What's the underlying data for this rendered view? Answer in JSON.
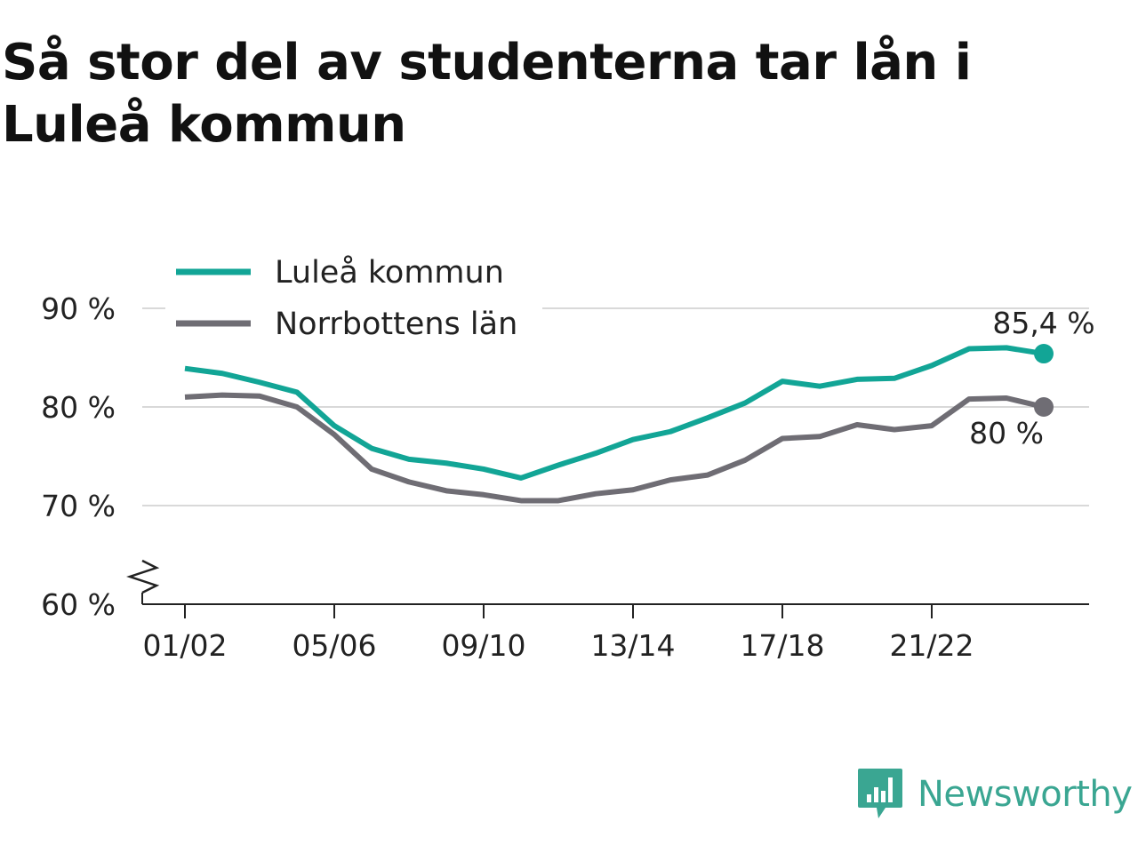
{
  "title": "Så stor del av studenterna tar lån i Luleå kommun",
  "colors": {
    "lulea": "#12a596",
    "norrbotten": "#6f6d74",
    "grid": "#d9d9d9",
    "axis": "#222222",
    "brand": "#3aa692"
  },
  "brand": {
    "name": "Newsworthy",
    "icon": "newsworthy-logo-icon"
  },
  "chart_data": {
    "type": "line",
    "title": "Så stor del av studenterna tar lån i Luleå kommun",
    "xlabel": "",
    "ylabel": "",
    "y_unit": "%",
    "ylim": [
      60,
      90
    ],
    "y_axis_break": true,
    "grid": "horizontal",
    "legend_position": "top-left",
    "y_ticks": [
      {
        "value": 60,
        "label": "60 %"
      },
      {
        "value": 70,
        "label": "70 %"
      },
      {
        "value": 80,
        "label": "80 %"
      },
      {
        "value": 90,
        "label": "90 %"
      }
    ],
    "x": [
      "01/02",
      "02/03",
      "03/04",
      "04/05",
      "05/06",
      "06/07",
      "07/08",
      "08/09",
      "09/10",
      "10/11",
      "11/12",
      "12/13",
      "13/14",
      "14/15",
      "15/16",
      "16/17",
      "17/18",
      "18/19",
      "19/20",
      "20/21",
      "21/22",
      "22/23",
      "23/24",
      "24/25"
    ],
    "x_ticks": [
      "01/02",
      "05/06",
      "09/10",
      "13/14",
      "17/18",
      "21/22"
    ],
    "series": [
      {
        "name": "Luleå kommun",
        "color": "#12a596",
        "end_label": "85,4 %",
        "values": [
          83.9,
          83.4,
          82.5,
          81.5,
          78.1,
          75.8,
          74.7,
          74.3,
          73.7,
          72.8,
          74.1,
          75.3,
          76.7,
          77.5,
          78.9,
          80.4,
          82.6,
          82.1,
          82.8,
          82.9,
          84.2,
          85.9,
          86.0,
          85.4
        ]
      },
      {
        "name": "Norrbottens län",
        "color": "#6f6d74",
        "end_label": "80 %",
        "values": [
          81.0,
          81.2,
          81.1,
          80.0,
          77.2,
          73.7,
          72.4,
          71.5,
          71.1,
          70.5,
          70.5,
          71.2,
          71.6,
          72.6,
          73.1,
          74.6,
          76.8,
          77.0,
          78.2,
          77.7,
          78.1,
          80.8,
          80.9,
          80.0
        ]
      }
    ]
  }
}
